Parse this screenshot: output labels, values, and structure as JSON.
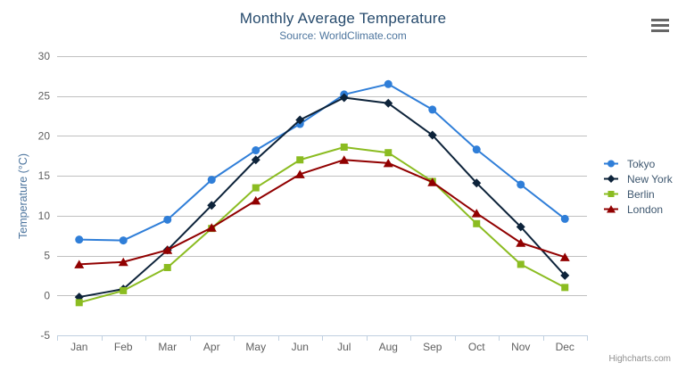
{
  "header": {
    "title": "Monthly Average Temperature",
    "subtitle": "Source: WorldClimate.com"
  },
  "icons": {
    "context_menu": "hamburger-icon"
  },
  "credits": {
    "label": "Highcharts.com"
  },
  "colors": {
    "title": "#274b6d",
    "subtitle": "#4d759e",
    "axis_title": "#4d759e",
    "tick_label": "#606060",
    "gridline": "#C0C0C0",
    "axis_line": "#C0D0E0",
    "legend_text": "#3E576F",
    "credits_text": "#909090",
    "menu_icon": "#666666"
  },
  "chart_data": {
    "type": "line",
    "title": "Monthly Average Temperature",
    "subtitle": "Source: WorldClimate.com",
    "xlabel": "",
    "ylabel": "Temperature (°C)",
    "categories": [
      "Jan",
      "Feb",
      "Mar",
      "Apr",
      "May",
      "Jun",
      "Jul",
      "Aug",
      "Sep",
      "Oct",
      "Nov",
      "Dec"
    ],
    "series": [
      {
        "name": "Tokyo",
        "color": "#2f7ed8",
        "marker": "circle",
        "values": [
          7.0,
          6.9,
          9.5,
          14.5,
          18.2,
          21.5,
          25.2,
          26.5,
          23.3,
          18.3,
          13.9,
          9.6
        ]
      },
      {
        "name": "New York",
        "color": "#0d233a",
        "marker": "diamond",
        "values": [
          -0.2,
          0.8,
          5.7,
          11.3,
          17.0,
          22.0,
          24.8,
          24.1,
          20.1,
          14.1,
          8.6,
          2.5
        ]
      },
      {
        "name": "Berlin",
        "color": "#8bbc21",
        "marker": "square",
        "values": [
          -0.9,
          0.6,
          3.5,
          8.4,
          13.5,
          17.0,
          18.6,
          17.9,
          14.3,
          9.0,
          3.9,
          1.0
        ]
      },
      {
        "name": "London",
        "color": "#910000",
        "marker": "triangle",
        "values": [
          3.9,
          4.2,
          5.7,
          8.5,
          11.9,
          15.2,
          17.0,
          16.6,
          14.2,
          10.3,
          6.6,
          4.8
        ]
      }
    ],
    "ylim": [
      -5,
      30
    ],
    "yticks": [
      -5,
      0,
      5,
      10,
      15,
      20,
      25,
      30
    ],
    "grid": true,
    "legend_position": "right"
  }
}
